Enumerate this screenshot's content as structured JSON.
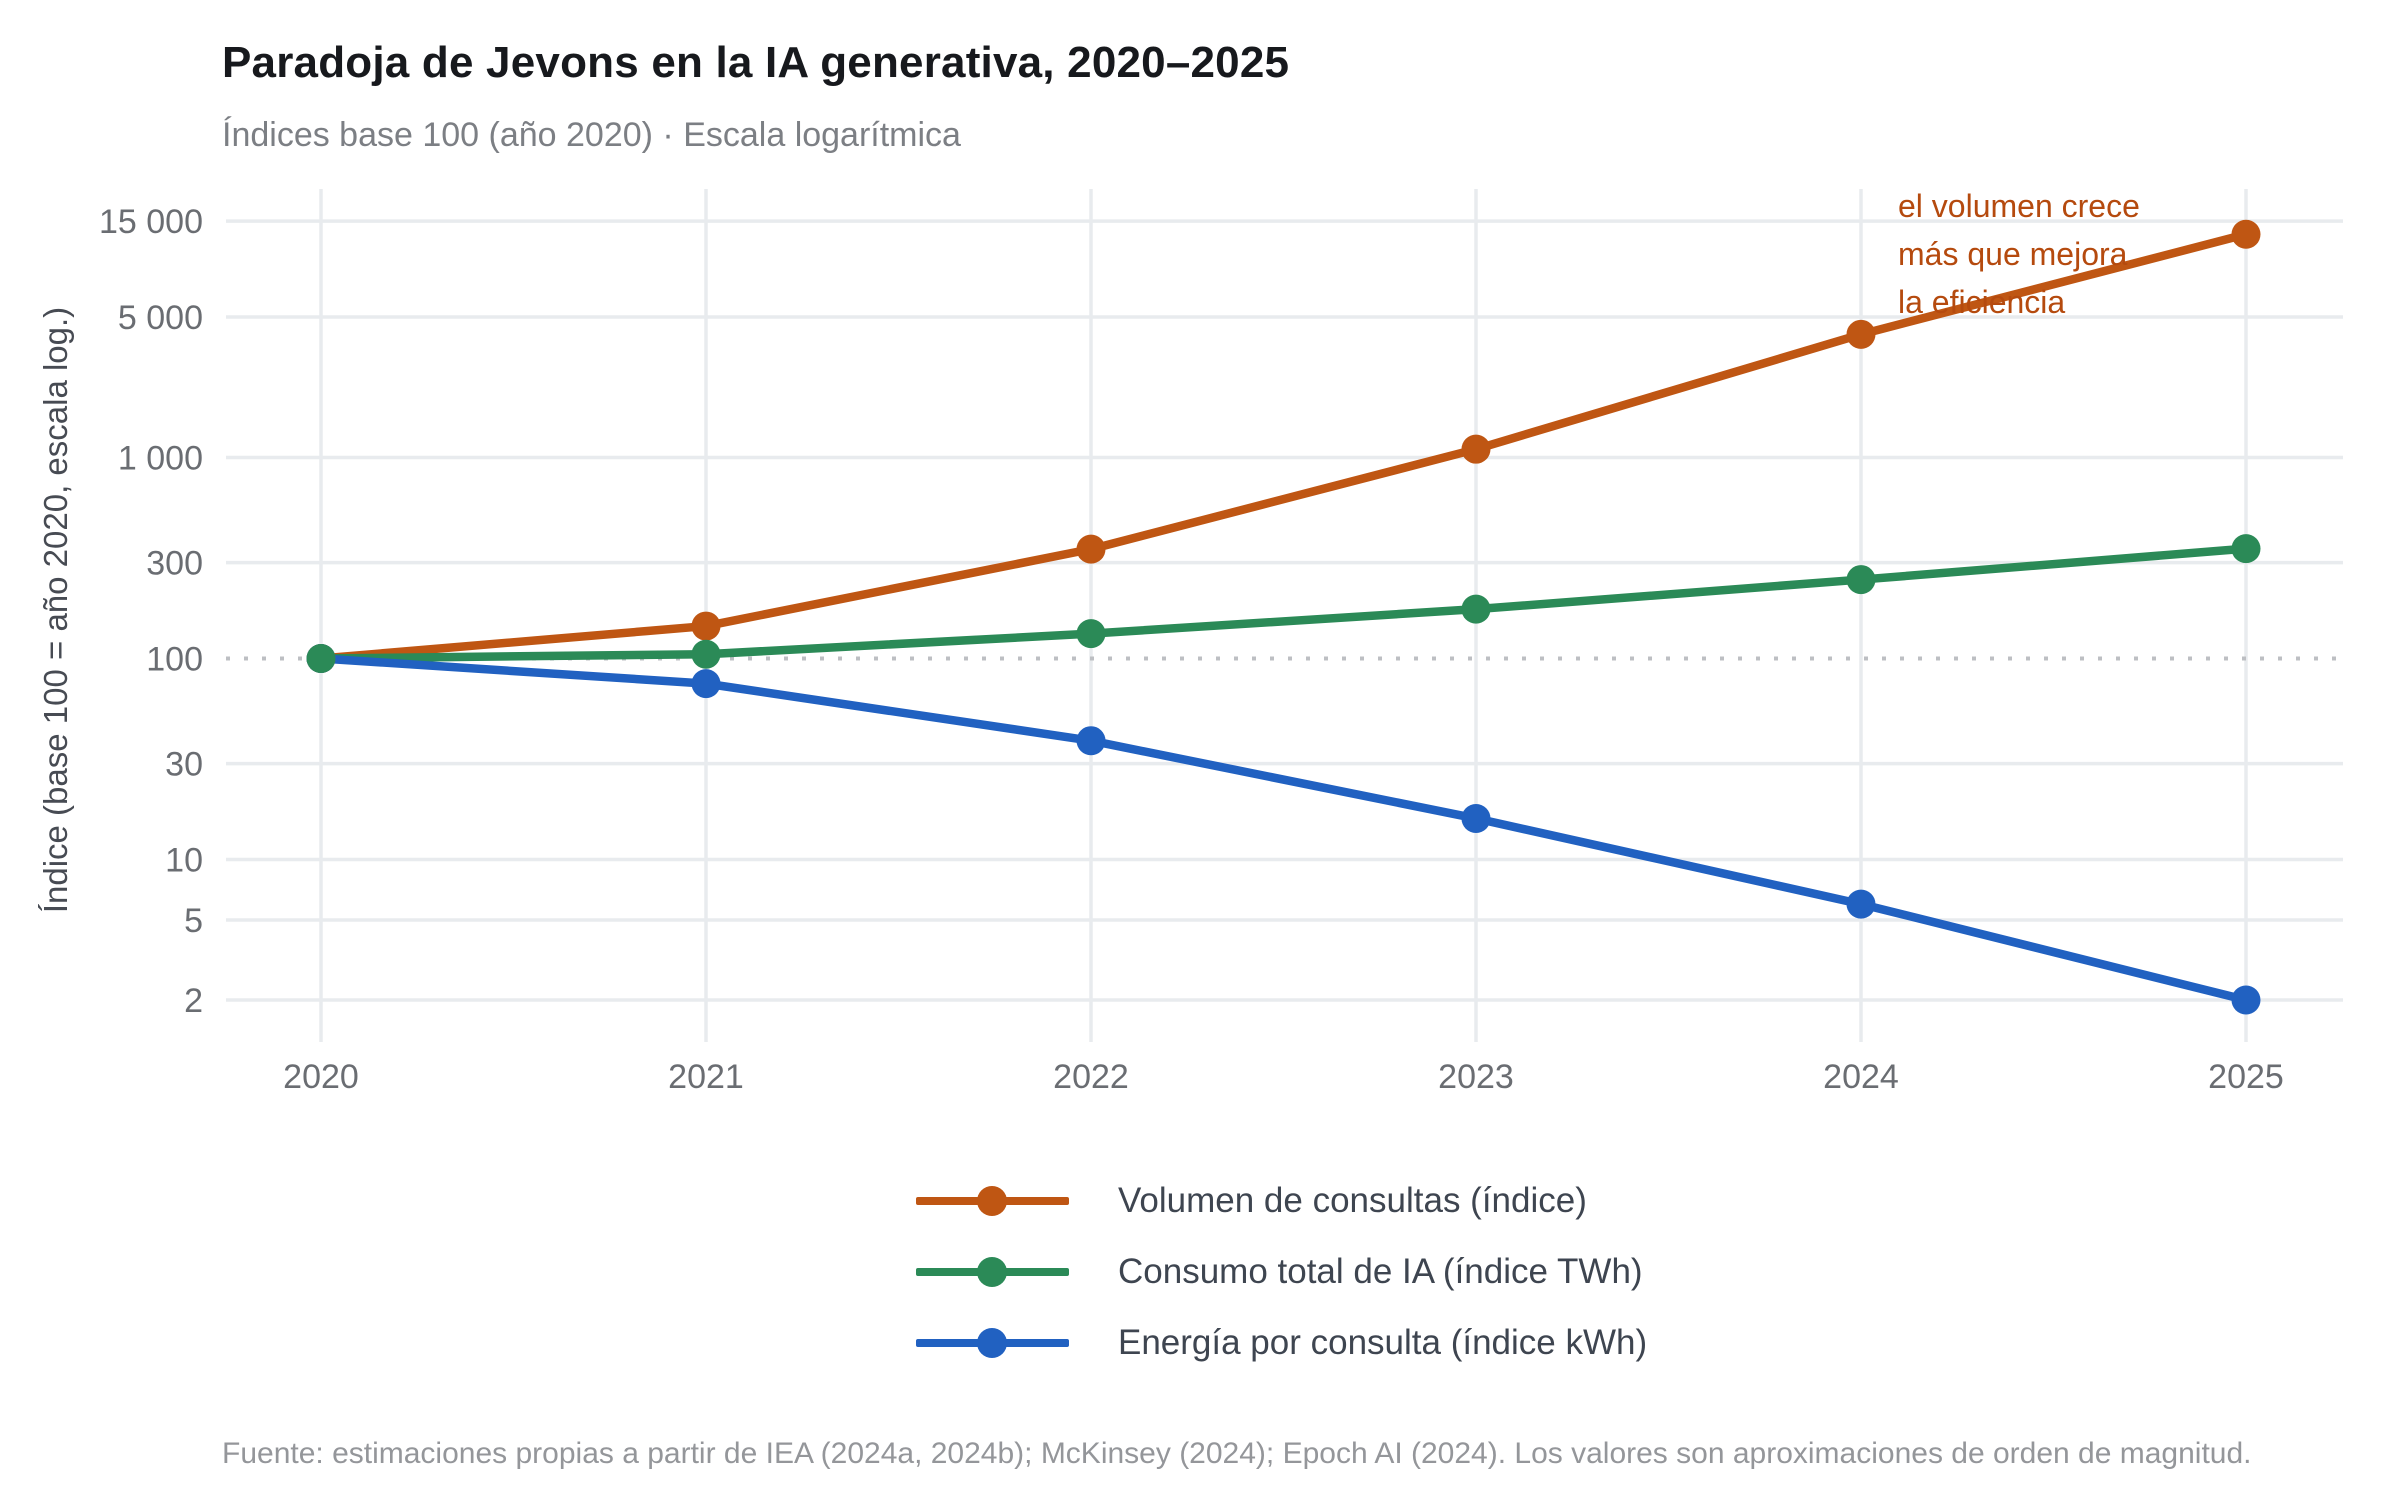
{
  "title": "Paradoja de Jevons en la IA generativa, 2020–2025",
  "subtitle": "Índices base 100 (año 2020) · Escala logarítmica",
  "y_axis": {
    "title": "Índice (base 100 = año 2020, escala log.)",
    "scale": "log",
    "tick_values": [
      15000,
      5000,
      1000,
      300,
      100,
      30,
      10,
      5,
      2
    ],
    "tick_labels": [
      "15 000",
      "5 000",
      "1 000",
      "300",
      "100",
      "30",
      "10",
      "5",
      "2"
    ],
    "baseline_value": 100
  },
  "x_axis": {
    "tick_values": [
      2020,
      2021,
      2022,
      2023,
      2024,
      2025
    ],
    "tick_labels": [
      "2020",
      "2021",
      "2022",
      "2023",
      "2024",
      "2025"
    ]
  },
  "annotation": {
    "lines": [
      "el volumen crece",
      "más que mejora",
      "la eficiencia"
    ],
    "color": "#b54a0e"
  },
  "legend": [
    {
      "label": "Volumen de consultas (índice)",
      "color": "#bf5613"
    },
    {
      "label": "Consumo total de IA (índice TWh)",
      "color": "#2b8a57"
    },
    {
      "label": "Energía por consulta (índice kWh)",
      "color": "#2161c1"
    }
  ],
  "footer": "Fuente: estimaciones propias a partir de IEA (2024a, 2024b); McKinsey (2024); Epoch AI (2024). Los valores son aproximaciones de orden de magnitud.",
  "colors": {
    "grid": "#e8ebee",
    "baseline_grid": "#bdbfc3",
    "tick_text": "#6a6d72",
    "title_text": "#17191d",
    "subtitle_text": "#7c7f84",
    "legend_text": "#3e4550",
    "footer_text": "#94969a"
  },
  "chart_data": {
    "type": "line",
    "title": "Paradoja de Jevons en la IA generativa, 2020–2025",
    "xlabel": "",
    "ylabel": "Índice (base 100 = año 2020, escala log.)",
    "yscale": "log",
    "ylim": [
      1.2,
      22000
    ],
    "grid": true,
    "legend_position": "bottom",
    "x": [
      2020,
      2021,
      2022,
      2023,
      2024,
      2025
    ],
    "series": [
      {
        "name": "Volumen de consultas (índice)",
        "color": "#bf5613",
        "values": [
          100,
          145,
          350,
          1100,
          4100,
          12900
        ]
      },
      {
        "name": "Consumo total de IA (índice TWh)",
        "color": "#2b8a57",
        "values": [
          100,
          105,
          133,
          176,
          247,
          352
        ]
      },
      {
        "name": "Energía por consulta (índice kWh)",
        "color": "#2161c1",
        "values": [
          100,
          75,
          39,
          16,
          6,
          2
        ]
      }
    ]
  }
}
